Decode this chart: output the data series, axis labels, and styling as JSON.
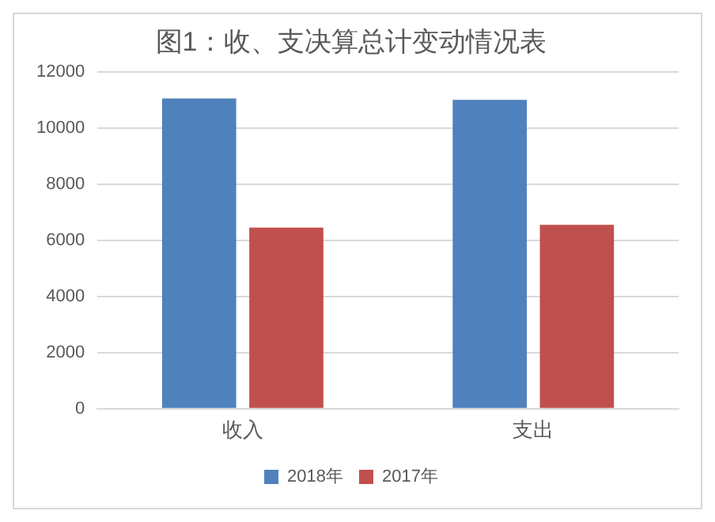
{
  "chart_data": {
    "type": "bar",
    "title": "图1：收、支决算总计变动情况表",
    "categories": [
      "收入",
      "支出"
    ],
    "series": [
      {
        "name": "2018年",
        "color": "#4f81bd",
        "values": [
          11050,
          11000
        ]
      },
      {
        "name": "2017年",
        "color": "#c0504d",
        "values": [
          6450,
          6550
        ]
      }
    ],
    "ylim": [
      0,
      12000
    ],
    "yticks": [
      0,
      2000,
      4000,
      6000,
      8000,
      10000,
      12000
    ],
    "grid": "y",
    "legend": "bottom"
  }
}
